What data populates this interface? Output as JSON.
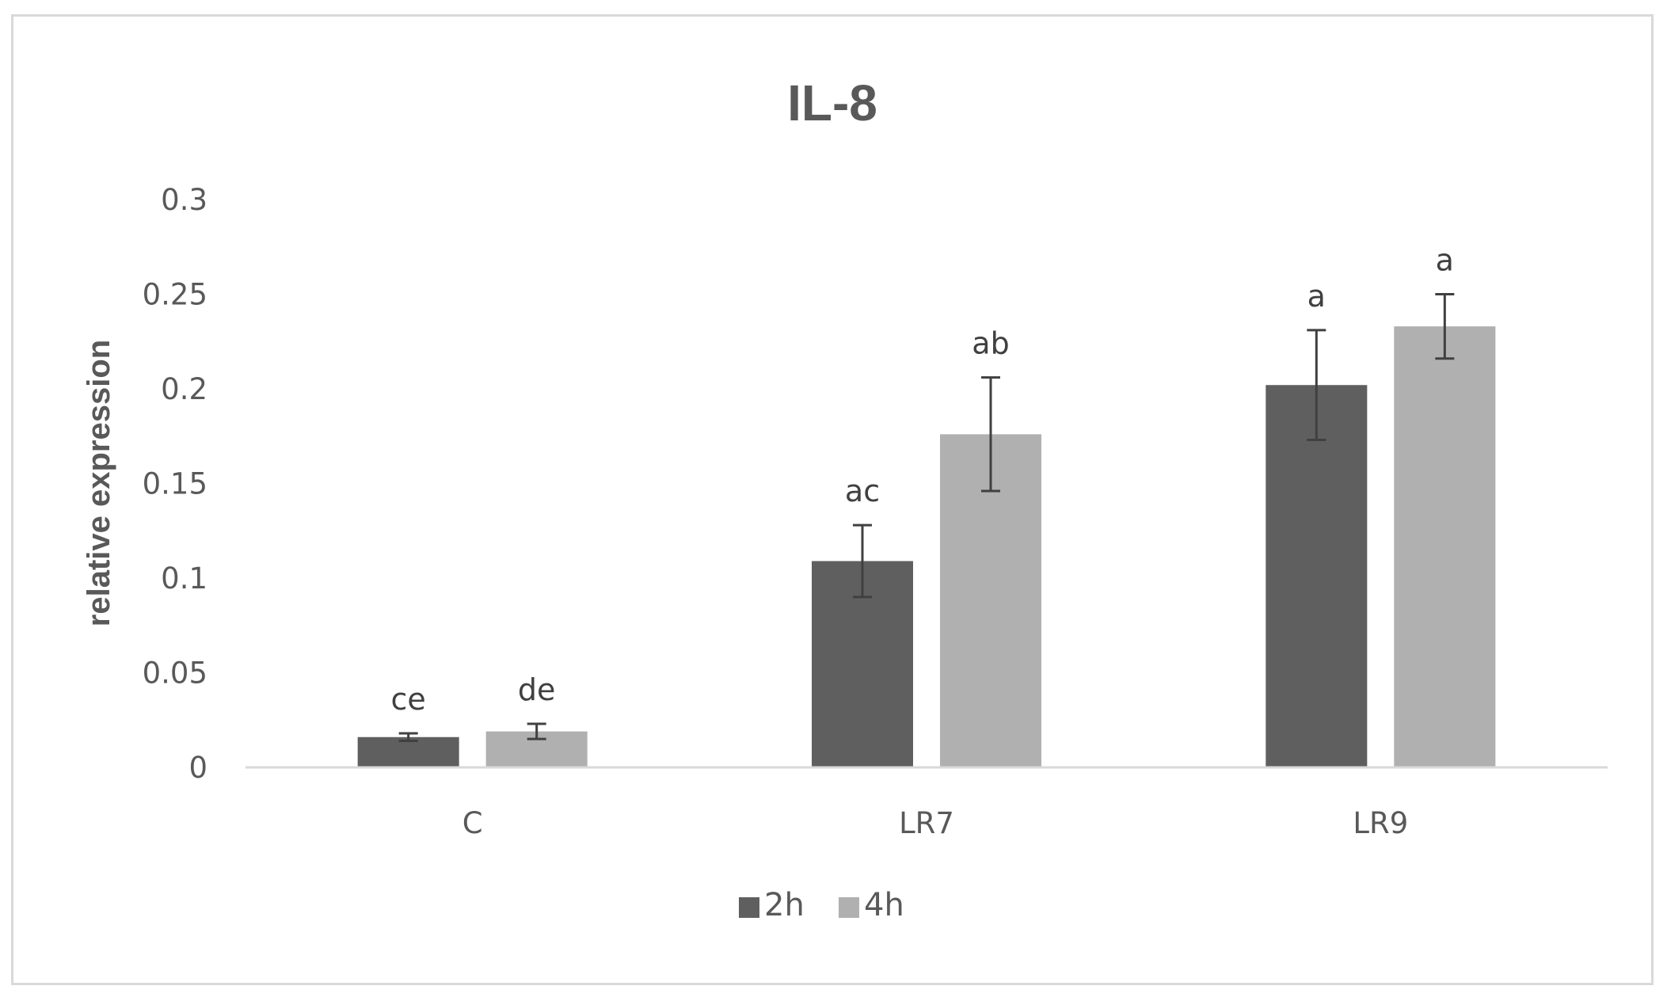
{
  "chart_data": {
    "type": "bar",
    "title": "IL-8",
    "xlabel": "",
    "ylabel": "relative expression",
    "categories": [
      "C",
      "LR7",
      "LR9"
    ],
    "ylim": [
      0,
      0.3
    ],
    "yticks": [
      0,
      0.05,
      0.1,
      0.15,
      0.2,
      0.25,
      0.3
    ],
    "ytick_labels": [
      "0",
      "0.05",
      "0.1",
      "0.15",
      "0.2",
      "0.25",
      "0.3"
    ],
    "grid": false,
    "legend_position": "bottom-center",
    "series": [
      {
        "name": "2h",
        "color": "#5f5f5f",
        "values": [
          0.016,
          0.109,
          0.202
        ],
        "errors": [
          0.002,
          0.019,
          0.029
        ],
        "annotations": [
          "ce",
          "ac",
          "a"
        ]
      },
      {
        "name": "4h",
        "color": "#b0b0b0",
        "values": [
          0.019,
          0.176,
          0.233
        ],
        "errors": [
          0.004,
          0.03,
          0.017
        ],
        "annotations": [
          "de",
          "ab",
          "a"
        ]
      }
    ]
  }
}
